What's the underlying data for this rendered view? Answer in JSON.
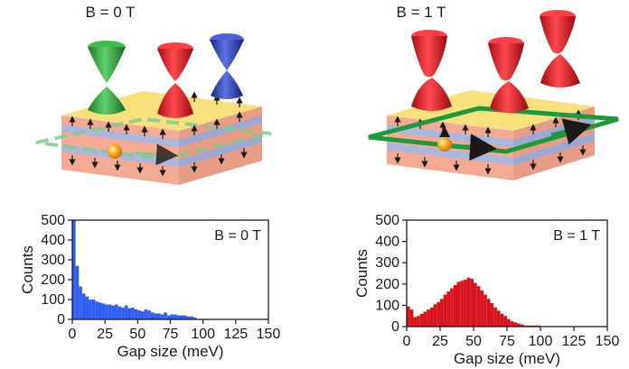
{
  "panels": {
    "left": {
      "title": "B = 0 T"
    },
    "right": {
      "title": "B = 1 T"
    }
  },
  "colors": {
    "cone_green": "#2e9e3a",
    "cone_red": "#d8141d",
    "cone_blue": "#2a3fb0",
    "top_layer": "#f7df7a",
    "blue_layer": "#a8b6dd",
    "pink_layer": "#f2b0a0",
    "edge_channel": "#1e9a3c",
    "electron": "#f2a11a",
    "hist_left": "#2f5ff2",
    "hist_right": "#d8141d"
  },
  "chart_data": [
    {
      "type": "bar",
      "title": "",
      "legend_text": "B = 0 T",
      "xlabel": "Gap size (meV)",
      "ylabel": "Counts",
      "xlim": [
        0,
        150
      ],
      "ylim": [
        0,
        500
      ],
      "xticks": [
        "0",
        "25",
        "50",
        "75",
        "100",
        "125",
        "150"
      ],
      "yticks": [
        "0",
        "100",
        "200",
        "300",
        "400",
        "500"
      ],
      "bin_width": 2.5,
      "values": [
        500,
        270,
        165,
        130,
        115,
        100,
        100,
        90,
        85,
        80,
        75,
        75,
        70,
        75,
        65,
        60,
        70,
        55,
        60,
        50,
        45,
        40,
        50,
        45,
        35,
        30,
        30,
        25,
        35,
        20,
        25,
        25,
        20,
        20,
        20,
        15,
        15,
        10
      ]
    },
    {
      "type": "bar",
      "title": "",
      "legend_text": "B = 1 T",
      "xlabel": "Gap size (meV)",
      "ylabel": "Counts",
      "xlim": [
        0,
        150
      ],
      "ylim": [
        0,
        500
      ],
      "xticks": [
        "0",
        "25",
        "50",
        "75",
        "100",
        "125",
        "150"
      ],
      "yticks": [
        "0",
        "100",
        "200",
        "300",
        "400",
        "500"
      ],
      "bin_width": 2.5,
      "values": [
        95,
        80,
        45,
        50,
        60,
        70,
        80,
        90,
        105,
        115,
        130,
        150,
        165,
        180,
        195,
        210,
        215,
        220,
        230,
        225,
        205,
        190,
        170,
        150,
        130,
        110,
        90,
        75,
        60,
        50,
        35,
        25,
        20,
        15,
        10,
        5,
        5,
        5,
        5,
        5
      ]
    }
  ]
}
